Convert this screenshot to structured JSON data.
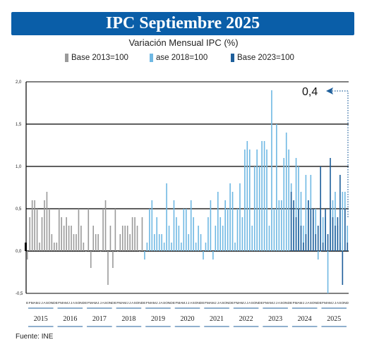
{
  "title": "IPC Septiembre 2025",
  "colors": {
    "title_bg": "#0a5ea8",
    "base2013": "#9a9a9a",
    "base2018": "#6fb8e3",
    "base2023": "#1f5f9b"
  },
  "chart_data": {
    "type": "bar",
    "title": "IPC Septiembre 2025",
    "subtitle": "Variación Mensual IPC (%)",
    "ylabel": "",
    "xlabel": "",
    "ylim": [
      -0.5,
      2.0
    ],
    "y_ticks": [
      "2,0",
      "1,5",
      "1,0",
      "0,5",
      "0,0",
      "-0,5"
    ],
    "y_tick_values": [
      2.0,
      1.5,
      1.0,
      0.5,
      0.0,
      -0.5
    ],
    "grid": true,
    "legend_position": "top",
    "legend": [
      {
        "label": "Base 2013=100",
        "color": "#9a9a9a"
      },
      {
        "label": "ase 2018=100",
        "color": "#6fb8e3"
      },
      {
        "label": "Base 2023=100",
        "color": "#1f5f9b"
      }
    ],
    "month_letters": [
      "E",
      "F",
      "M",
      "A",
      "M",
      "J",
      "J",
      "A",
      "S",
      "O",
      "N",
      "D"
    ],
    "years": [
      "2015",
      "2016",
      "2017",
      "2018",
      "2019",
      "2020",
      "2021",
      "2022",
      "2023",
      "2024",
      "2025"
    ],
    "annotation": {
      "label": "0,4",
      "value": 0.4
    },
    "series": [
      {
        "name": "Base 2013=100",
        "color": "#9a9a9a",
        "start_year": "2015",
        "start_month": 1,
        "values": [
          -0.1,
          0.4,
          0.6,
          0.6,
          0.5,
          0.1,
          0.4,
          0.6,
          0.7,
          0.5,
          0.2,
          0.1,
          0.1,
          0.5,
          0.4,
          0.3,
          0.4,
          0.3,
          0.3,
          0.2,
          0.2,
          0.5,
          0.3,
          0.1,
          0.0,
          0.5,
          -0.2,
          0.3,
          0.2,
          0.2,
          0.0,
          0.5,
          0.6,
          -0.4,
          0.3,
          -0.2,
          0.5,
          0.0,
          0.2,
          0.3,
          0.3,
          0.3,
          0.2,
          0.4,
          0.4,
          0.3,
          0.0,
          0.4
        ]
      },
      {
        "name": "ase 2018=100",
        "color": "#6fb8e3",
        "start_year": "2019",
        "start_month": 1,
        "values": [
          -0.1,
          0.1,
          0.5,
          0.6,
          0.2,
          0.4,
          0.2,
          0.2,
          0.1,
          0.8,
          0.3,
          0.1,
          0.6,
          0.4,
          0.3,
          0.1,
          0.5,
          0.5,
          0.2,
          0.6,
          0.4,
          0.1,
          0.3,
          0.2,
          -0.1,
          0.1,
          0.4,
          0.6,
          -0.1,
          0.3,
          0.7,
          0.4,
          0.3,
          0.6,
          0.5,
          0.8,
          0.7,
          0.1,
          0.5,
          0.8,
          0.4,
          1.2,
          1.3,
          1.2,
          0.3,
          1.0,
          1.2,
          1.0,
          1.3,
          1.3,
          1.2,
          0.3,
          1.9,
          0.5,
          1.5,
          0.6,
          0.6,
          1.1,
          1.4,
          1.2,
          0.8,
          0.4,
          1.1,
          1.0,
          0.7,
          0.3,
          0.9,
          0.6,
          0.9,
          0.4,
          0.5,
          -0.1,
          0.0,
          0.4,
          0.4,
          -0.5,
          0.5,
          0.6,
          0.7,
          0.3,
          0.1,
          0.7,
          0.7,
          0.3
        ]
      },
      {
        "name": "Base 2023=100",
        "color": "#1f5f9b",
        "start_year": "2024",
        "start_month": 1,
        "values": [
          0.7,
          0.6,
          0.4,
          0.5,
          0.3,
          0.1,
          0.2,
          0.6,
          0.5,
          0.5,
          0.2,
          0.3,
          1.0,
          0.1,
          0.5,
          0.2,
          1.1,
          0.4,
          0.3,
          0.4,
          0.9,
          -0.4,
          0.5,
          0.1
        ]
      }
    ]
  },
  "footer": "Fuente: INE"
}
